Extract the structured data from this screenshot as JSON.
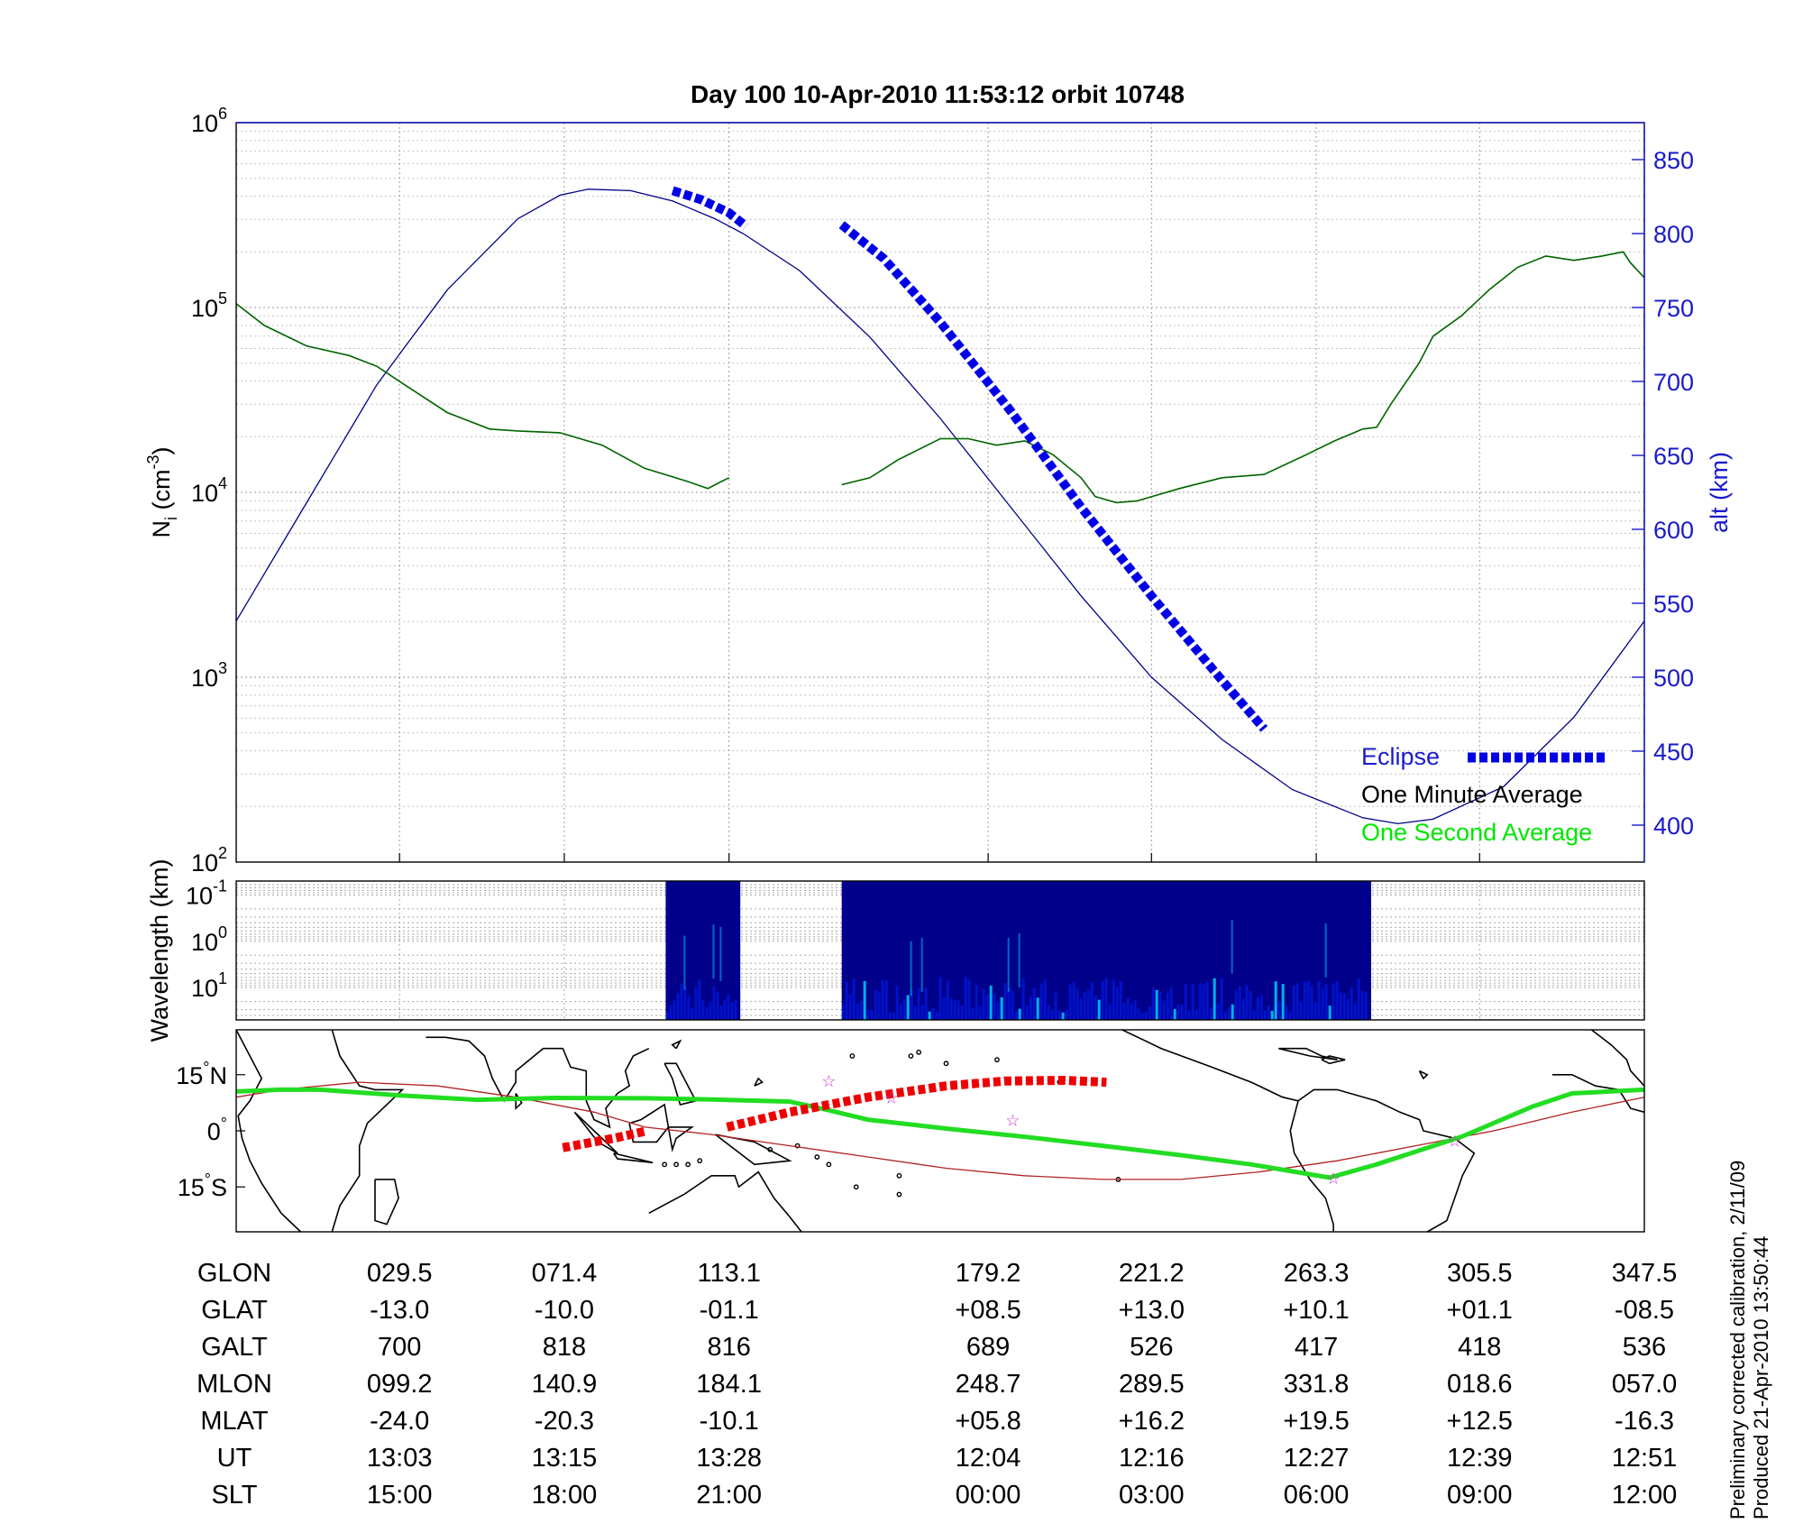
{
  "title": "Day 100  10-Apr-2010 11:53:12   orbit 10748",
  "colors": {
    "altitude": "#00008b",
    "density": "#006400",
    "eclipse": "#0000e6",
    "one_second": "#00e600",
    "ground_track": "#22dd22",
    "magnetic_equator": "#b22222",
    "eclipse_track": "#ee0000",
    "axis_right": "#1a1acc"
  },
  "footer": {
    "line1": "Preliminary corrected calibration, 2/11/09",
    "line2": "Produced 21-Apr-2010 13:50:44"
  },
  "chart_data": [
    {
      "type": "line",
      "panel": "ion-density-altitude",
      "ylabel": "N_i (cm^-3)",
      "ylabel_base": "N",
      "ylabel_sub": "i",
      "ylabel_open": " (cm",
      "ylabel_sup": "-3",
      "ylabel_close": ")",
      "y_scale": "log",
      "ylim": [
        100,
        1000000
      ],
      "y_ticks": [
        {
          "base": "10",
          "exp": "6"
        },
        {
          "base": "10",
          "exp": "5"
        },
        {
          "base": "10",
          "exp": "4"
        },
        {
          "base": "10",
          "exp": "3"
        },
        {
          "base": "10",
          "exp": "2"
        }
      ],
      "y2label": "alt (km)",
      "y2lim": [
        375,
        875
      ],
      "y2_ticks": [
        "850",
        "800",
        "750",
        "700",
        "650",
        "600",
        "550",
        "500",
        "450",
        "400"
      ],
      "x_fraction_range": [
        0,
        1
      ],
      "grid": true,
      "legend_position": "bottom-right",
      "legend": [
        "Eclipse",
        "One Minute Average",
        "One Second Average"
      ],
      "series": [
        {
          "name": "alt (km)",
          "axis": "right",
          "segments": [
            [
              [
                0.0,
                538
              ],
              [
                0.05,
                618
              ],
              [
                0.1,
                698
              ],
              [
                0.15,
                762
              ],
              [
                0.2,
                810
              ],
              [
                0.23,
                826
              ],
              [
                0.25,
                830
              ],
              [
                0.28,
                829
              ],
              [
                0.31,
                822
              ],
              [
                0.34,
                810
              ],
              [
                0.36,
                800
              ],
              [
                0.4,
                775
              ],
              [
                0.45,
                730
              ],
              [
                0.5,
                675
              ],
              [
                0.55,
                615
              ],
              [
                0.6,
                555
              ],
              [
                0.65,
                500
              ],
              [
                0.7,
                458
              ],
              [
                0.75,
                424
              ],
              [
                0.8,
                405
              ],
              [
                0.825,
                401
              ],
              [
                0.85,
                404
              ],
              [
                0.9,
                426
              ],
              [
                0.95,
                473
              ],
              [
                1.0,
                538
              ]
            ]
          ]
        },
        {
          "name": "One Minute Average",
          "axis": "left",
          "segments": [
            [
              [
                0.0,
                105000
              ],
              [
                0.02,
                80000
              ],
              [
                0.05,
                62000
              ],
              [
                0.08,
                55000
              ],
              [
                0.1,
                48000
              ],
              [
                0.12,
                38000
              ],
              [
                0.15,
                27000
              ],
              [
                0.18,
                22000
              ],
              [
                0.2,
                21500
              ],
              [
                0.23,
                21000
              ],
              [
                0.26,
                18000
              ],
              [
                0.29,
                13500
              ],
              [
                0.32,
                11500
              ],
              [
                0.335,
                10500
              ],
              [
                0.345,
                11500
              ],
              [
                0.35,
                12000
              ]
            ],
            [
              [
                0.43,
                11000
              ],
              [
                0.45,
                12000
              ],
              [
                0.47,
                15000
              ],
              [
                0.5,
                19500
              ],
              [
                0.52,
                19500
              ],
              [
                0.54,
                18000
              ],
              [
                0.56,
                19000
              ],
              [
                0.58,
                16000
              ],
              [
                0.6,
                12000
              ],
              [
                0.61,
                9500
              ],
              [
                0.625,
                8800
              ],
              [
                0.64,
                9000
              ],
              [
                0.67,
                10500
              ],
              [
                0.7,
                12000
              ],
              [
                0.73,
                12500
              ],
              [
                0.76,
                16000
              ],
              [
                0.78,
                19000
              ],
              [
                0.8,
                22000
              ],
              [
                0.81,
                22500
              ],
              [
                0.82,
                30000
              ],
              [
                0.84,
                50000
              ],
              [
                0.85,
                70000
              ],
              [
                0.87,
                90000
              ],
              [
                0.89,
                125000
              ],
              [
                0.91,
                165000
              ],
              [
                0.93,
                190000
              ],
              [
                0.95,
                180000
              ],
              [
                0.97,
                190000
              ],
              [
                0.985,
                200000
              ],
              [
                0.99,
                175000
              ],
              [
                1.0,
                145000
              ]
            ]
          ]
        },
        {
          "name": "Eclipse",
          "axis": "right",
          "segments": [
            [
              [
                0.31,
                829
              ],
              [
                0.33,
                823
              ],
              [
                0.35,
                814
              ],
              [
                0.362,
                805
              ]
            ],
            [
              [
                0.43,
                806
              ],
              [
                0.46,
                783
              ],
              [
                0.5,
                740
              ],
              [
                0.55,
                680
              ],
              [
                0.6,
                615
              ],
              [
                0.65,
                555
              ],
              [
                0.7,
                498
              ],
              [
                0.73,
                465
              ]
            ]
          ]
        }
      ]
    },
    {
      "type": "heatmap",
      "panel": "wavelength-spectrogram",
      "ylabel": "Wavelength (km)",
      "y_scale": "log",
      "ylim": [
        0.05,
        50
      ],
      "y_ticks": [
        {
          "base": "10",
          "exp": "-1"
        },
        {
          "base": "10",
          "exp": "0"
        },
        {
          "base": "10",
          "exp": "1"
        }
      ],
      "colormap": [
        "#00008b",
        "#0020ff",
        "#00d0ff"
      ],
      "data_intervals": [
        [
          0.305,
          0.358
        ],
        [
          0.43,
          0.806
        ]
      ]
    },
    {
      "type": "map",
      "panel": "ground-track",
      "y_ticks": [
        {
          "value": "15",
          "hemisphere": "N"
        },
        {
          "value": "0",
          "hemisphere": ""
        },
        {
          "value": "15",
          "hemisphere": "S"
        }
      ],
      "ylim": [
        -27,
        27
      ],
      "lon_range": [
        8.5,
        368.5
      ],
      "magnetic_equator": [
        [
          8.5,
          9
        ],
        [
          20,
          11
        ],
        [
          40,
          13
        ],
        [
          60,
          12
        ],
        [
          80,
          9
        ],
        [
          100,
          5
        ],
        [
          113,
          1
        ],
        [
          130,
          -1
        ],
        [
          150,
          -4
        ],
        [
          170,
          -7
        ],
        [
          190,
          -10
        ],
        [
          210,
          -12
        ],
        [
          230,
          -13
        ],
        [
          250,
          -13
        ],
        [
          270,
          -11
        ],
        [
          290,
          -8
        ],
        [
          310,
          -4
        ],
        [
          330,
          0
        ],
        [
          350,
          5
        ],
        [
          368.5,
          9
        ]
      ],
      "ground_track": [
        [
          8.5,
          10.5
        ],
        [
          20,
          11
        ],
        [
          30,
          11
        ],
        [
          50,
          9.5
        ],
        [
          70,
          8.3
        ],
        [
          90,
          8.8
        ],
        [
          113,
          8.7
        ],
        [
          130,
          8.4
        ],
        [
          150,
          7.8
        ],
        [
          160,
          5.5
        ],
        [
          170,
          3
        ],
        [
          190,
          0.6
        ],
        [
          210,
          -1.6
        ],
        [
          230,
          -4
        ],
        [
          250,
          -6.5
        ],
        [
          268,
          -9
        ],
        [
          288,
          -12.5
        ],
        [
          300,
          -9
        ],
        [
          322,
          -1.5
        ],
        [
          340,
          6.5
        ],
        [
          350,
          10
        ],
        [
          368.5,
          11
        ]
      ],
      "eclipse_track": [
        [
          [
            92,
            -4.5
          ],
          [
            105,
            -2
          ],
          [
            113.5,
            0
          ]
        ],
        [
          [
            134,
            1
          ],
          [
            150,
            5
          ],
          [
            170,
            9
          ],
          [
            190,
            12
          ],
          [
            205,
            13.3
          ],
          [
            220,
            13.5
          ],
          [
            231,
            13
          ]
        ]
      ],
      "stars": [
        [
          160,
          13.5
        ],
        [
          176,
          9
        ],
        [
          207,
          3
        ],
        [
          289,
          -12.5
        ],
        [
          320,
          -2.5
        ]
      ]
    }
  ],
  "table": {
    "rows": [
      {
        "label": "GLON",
        "values": [
          "029.5",
          "071.4",
          "113.1",
          "179.2",
          "221.2",
          "263.3",
          "305.5",
          "347.5"
        ]
      },
      {
        "label": "GLAT",
        "values": [
          "-13.0",
          "-10.0",
          "-01.1",
          "+08.5",
          "+13.0",
          "+10.1",
          "+01.1",
          "-08.5"
        ]
      },
      {
        "label": "GALT",
        "values": [
          "700",
          "818",
          "816",
          "689",
          "526",
          "417",
          "418",
          "536"
        ]
      },
      {
        "label": "MLON",
        "values": [
          "099.2",
          "140.9",
          "184.1",
          "248.7",
          "289.5",
          "331.8",
          "018.6",
          "057.0"
        ]
      },
      {
        "label": "MLAT",
        "values": [
          "-24.0",
          "-20.3",
          "-10.1",
          "+05.8",
          "+16.2",
          "+19.5",
          "+12.5",
          "-16.3"
        ]
      },
      {
        "label": "UT",
        "values": [
          "13:03",
          "13:15",
          "13:28",
          "12:04",
          "12:16",
          "12:27",
          "12:39",
          "12:51"
        ]
      },
      {
        "label": "SLT",
        "values": [
          "15:00",
          "18:00",
          "21:00",
          "00:00",
          "03:00",
          "06:00",
          "09:00",
          "12:00"
        ]
      }
    ]
  }
}
